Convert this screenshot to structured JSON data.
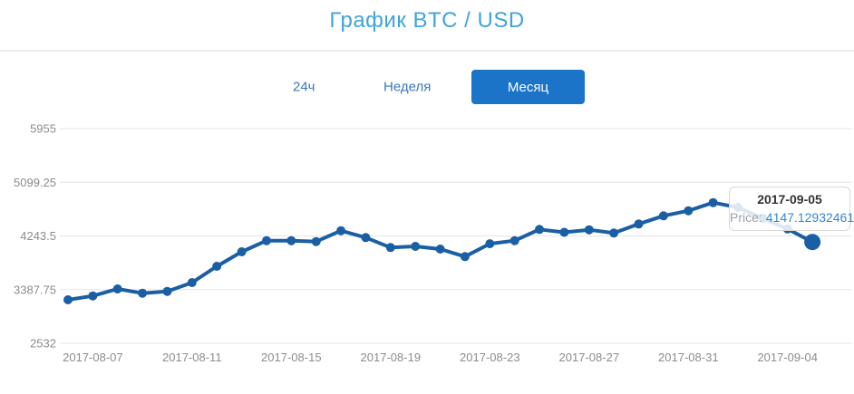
{
  "header": {
    "title": "График BTC / USD"
  },
  "tabs": [
    {
      "label": "24ч",
      "active": false
    },
    {
      "label": "Неделя",
      "active": false
    },
    {
      "label": "Месяц",
      "active": true
    }
  ],
  "tooltip": {
    "date": "2017-09-05",
    "price_label": "Price:",
    "price_value": "4147.12932461"
  },
  "colors": {
    "title": "#41a3dc",
    "tab_link": "#3a78b5",
    "tab_active_bg": "#1b74c8",
    "tab_active_text": "#ffffff",
    "line": "#1a5fa4",
    "grid": "#e6e6e6",
    "axis_label": "#8c8c8c",
    "tooltip_value": "#3787cf",
    "divider": "#ececec"
  },
  "chart_data": {
    "type": "line",
    "title": "График BTC / USD",
    "xlabel": "",
    "ylabel": "",
    "ylim": [
      2532,
      5955
    ],
    "grid": "horizontal",
    "legend": "none",
    "y_ticks": [
      2532,
      3387.75,
      4243.5,
      5099.25,
      5955
    ],
    "x_tick_labels": [
      "2017-08-07",
      "2017-08-11",
      "2017-08-15",
      "2017-08-19",
      "2017-08-23",
      "2017-08-27",
      "2017-08-31",
      "2017-09-04"
    ],
    "series": [
      {
        "name": "BTC/USD",
        "x": [
          "2017-08-06",
          "2017-08-07",
          "2017-08-08",
          "2017-08-09",
          "2017-08-10",
          "2017-08-11",
          "2017-08-12",
          "2017-08-13",
          "2017-08-14",
          "2017-08-15",
          "2017-08-16",
          "2017-08-17",
          "2017-08-18",
          "2017-08-19",
          "2017-08-20",
          "2017-08-21",
          "2017-08-22",
          "2017-08-23",
          "2017-08-24",
          "2017-08-25",
          "2017-08-26",
          "2017-08-27",
          "2017-08-28",
          "2017-08-29",
          "2017-08-30",
          "2017-08-31",
          "2017-09-01",
          "2017-09-02",
          "2017-09-03",
          "2017-09-04",
          "2017-09-05"
        ],
        "values": [
          3225,
          3287,
          3398,
          3331,
          3360,
          3500,
          3760,
          3991,
          4168,
          4168,
          4154,
          4327,
          4217,
          4058,
          4077,
          4034,
          3914,
          4120,
          4168,
          4347,
          4301,
          4342,
          4290,
          4434,
          4564,
          4645,
          4775,
          4698,
          4525,
          4356,
          4147.12932461
        ]
      }
    ],
    "highlight": {
      "date": "2017-09-05",
      "value": 4147.12932461
    }
  }
}
